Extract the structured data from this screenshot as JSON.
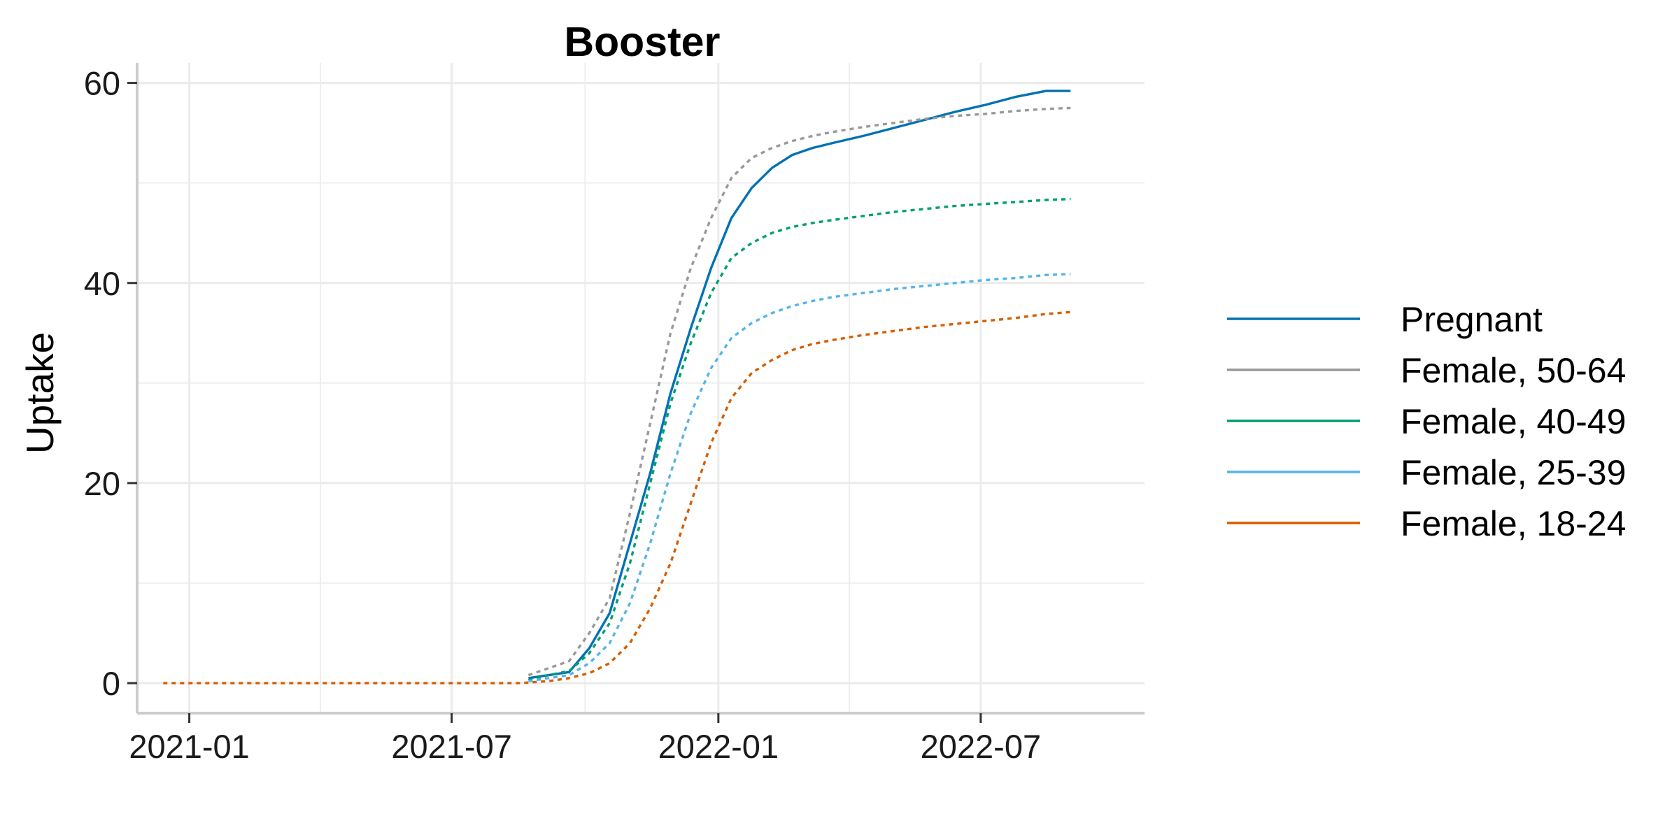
{
  "chart_data": {
    "type": "line",
    "title": "Booster",
    "xlabel": "",
    "ylabel": "Uptake",
    "x_ticks": [
      "2021-01",
      "2021-07",
      "2022-01",
      "2022-07"
    ],
    "y_ticks": [
      0,
      20,
      40,
      60
    ],
    "xlim": [
      "2020-11-26",
      "2022-10-22"
    ],
    "ylim": [
      -3,
      62
    ],
    "grid": true,
    "legend_position": "right",
    "series": [
      {
        "name": "Pregnant",
        "color": "#0072B2",
        "dash": "solid",
        "points": [
          [
            "2021-08-23",
            0.5
          ],
          [
            "2021-09-06",
            0.8
          ],
          [
            "2021-09-20",
            1.1
          ],
          [
            "2021-10-04",
            3.5
          ],
          [
            "2021-10-18",
            7
          ],
          [
            "2021-11-01",
            14
          ],
          [
            "2021-11-15",
            21
          ],
          [
            "2021-11-29",
            29
          ],
          [
            "2021-12-13",
            35.5
          ],
          [
            "2021-12-27",
            41.5
          ],
          [
            "2022-01-10",
            46.5
          ],
          [
            "2022-01-24",
            49.5
          ],
          [
            "2022-02-07",
            51.5
          ],
          [
            "2022-02-21",
            52.8
          ],
          [
            "2022-03-07",
            53.5
          ],
          [
            "2022-03-21",
            54
          ],
          [
            "2022-04-11",
            54.7
          ],
          [
            "2022-05-02",
            55.5
          ],
          [
            "2022-05-23",
            56.3
          ],
          [
            "2022-06-13",
            57.1
          ],
          [
            "2022-07-04",
            57.8
          ],
          [
            "2022-07-25",
            58.6
          ],
          [
            "2022-08-15",
            59.2
          ],
          [
            "2022-09-01",
            59.2
          ]
        ]
      },
      {
        "name": "Female, 50-64",
        "color": "#999999",
        "dash": "dotted",
        "points": [
          [
            "2021-08-23",
            0.8
          ],
          [
            "2021-09-06",
            1.5
          ],
          [
            "2021-09-20",
            2.2
          ],
          [
            "2021-10-04",
            5
          ],
          [
            "2021-10-18",
            8.5
          ],
          [
            "2021-11-01",
            17
          ],
          [
            "2021-11-15",
            26
          ],
          [
            "2021-11-29",
            35
          ],
          [
            "2021-12-13",
            41.5
          ],
          [
            "2021-12-27",
            46.5
          ],
          [
            "2022-01-10",
            50.5
          ],
          [
            "2022-01-24",
            52.5
          ],
          [
            "2022-02-07",
            53.5
          ],
          [
            "2022-02-21",
            54.2
          ],
          [
            "2022-03-07",
            54.7
          ],
          [
            "2022-03-21",
            55.1
          ],
          [
            "2022-04-11",
            55.6
          ],
          [
            "2022-05-02",
            56
          ],
          [
            "2022-05-23",
            56.4
          ],
          [
            "2022-06-13",
            56.7
          ],
          [
            "2022-07-04",
            56.9
          ],
          [
            "2022-07-25",
            57.2
          ],
          [
            "2022-08-15",
            57.4
          ],
          [
            "2022-09-01",
            57.5
          ]
        ]
      },
      {
        "name": "Female, 40-49",
        "color": "#009E73",
        "dash": "dotted",
        "points": [
          [
            "2021-08-23",
            0.3
          ],
          [
            "2021-09-06",
            0.8
          ],
          [
            "2021-09-20",
            1.2
          ],
          [
            "2021-10-04",
            3
          ],
          [
            "2021-10-18",
            6
          ],
          [
            "2021-11-01",
            12
          ],
          [
            "2021-11-15",
            20
          ],
          [
            "2021-11-29",
            28
          ],
          [
            "2021-12-13",
            34
          ],
          [
            "2021-12-27",
            39
          ],
          [
            "2022-01-10",
            42.5
          ],
          [
            "2022-01-24",
            44
          ],
          [
            "2022-02-07",
            45
          ],
          [
            "2022-02-21",
            45.6
          ],
          [
            "2022-03-07",
            46
          ],
          [
            "2022-03-21",
            46.3
          ],
          [
            "2022-04-11",
            46.7
          ],
          [
            "2022-05-02",
            47.1
          ],
          [
            "2022-05-23",
            47.4
          ],
          [
            "2022-06-13",
            47.7
          ],
          [
            "2022-07-04",
            47.9
          ],
          [
            "2022-07-25",
            48.1
          ],
          [
            "2022-08-15",
            48.3
          ],
          [
            "2022-09-01",
            48.4
          ]
        ]
      },
      {
        "name": "Female, 25-39",
        "color": "#56B4E9",
        "dash": "dotted",
        "points": [
          [
            "2021-08-23",
            0.2
          ],
          [
            "2021-09-06",
            0.5
          ],
          [
            "2021-09-20",
            0.8
          ],
          [
            "2021-10-04",
            2
          ],
          [
            "2021-10-18",
            4
          ],
          [
            "2021-11-01",
            8
          ],
          [
            "2021-11-15",
            14
          ],
          [
            "2021-11-29",
            21
          ],
          [
            "2021-12-13",
            27
          ],
          [
            "2021-12-27",
            31.5
          ],
          [
            "2022-01-10",
            34.5
          ],
          [
            "2022-01-24",
            36
          ],
          [
            "2022-02-07",
            37
          ],
          [
            "2022-02-21",
            37.7
          ],
          [
            "2022-03-07",
            38.2
          ],
          [
            "2022-03-21",
            38.6
          ],
          [
            "2022-04-11",
            39
          ],
          [
            "2022-05-02",
            39.4
          ],
          [
            "2022-05-23",
            39.7
          ],
          [
            "2022-06-13",
            40
          ],
          [
            "2022-07-04",
            40.3
          ],
          [
            "2022-07-25",
            40.5
          ],
          [
            "2022-08-15",
            40.8
          ],
          [
            "2022-09-01",
            40.9
          ]
        ]
      },
      {
        "name": "Female, 18-24",
        "color": "#D55E00",
        "dash": "dotted",
        "points": [
          [
            "2020-12-14",
            0
          ],
          [
            "2021-03-01",
            0
          ],
          [
            "2021-06-01",
            0
          ],
          [
            "2021-08-16",
            0
          ],
          [
            "2021-09-06",
            0.2
          ],
          [
            "2021-09-20",
            0.5
          ],
          [
            "2021-10-04",
            1
          ],
          [
            "2021-10-18",
            2
          ],
          [
            "2021-11-01",
            4
          ],
          [
            "2021-11-15",
            7.5
          ],
          [
            "2021-11-29",
            12
          ],
          [
            "2021-12-13",
            18
          ],
          [
            "2021-12-27",
            24
          ],
          [
            "2022-01-10",
            28.5
          ],
          [
            "2022-01-24",
            31
          ],
          [
            "2022-02-07",
            32.3
          ],
          [
            "2022-02-21",
            33.3
          ],
          [
            "2022-03-07",
            33.9
          ],
          [
            "2022-03-21",
            34.3
          ],
          [
            "2022-04-11",
            34.8
          ],
          [
            "2022-05-02",
            35.2
          ],
          [
            "2022-05-23",
            35.6
          ],
          [
            "2022-06-13",
            35.9
          ],
          [
            "2022-07-04",
            36.2
          ],
          [
            "2022-07-25",
            36.5
          ],
          [
            "2022-08-15",
            36.9
          ],
          [
            "2022-09-01",
            37.1
          ]
        ]
      }
    ]
  }
}
